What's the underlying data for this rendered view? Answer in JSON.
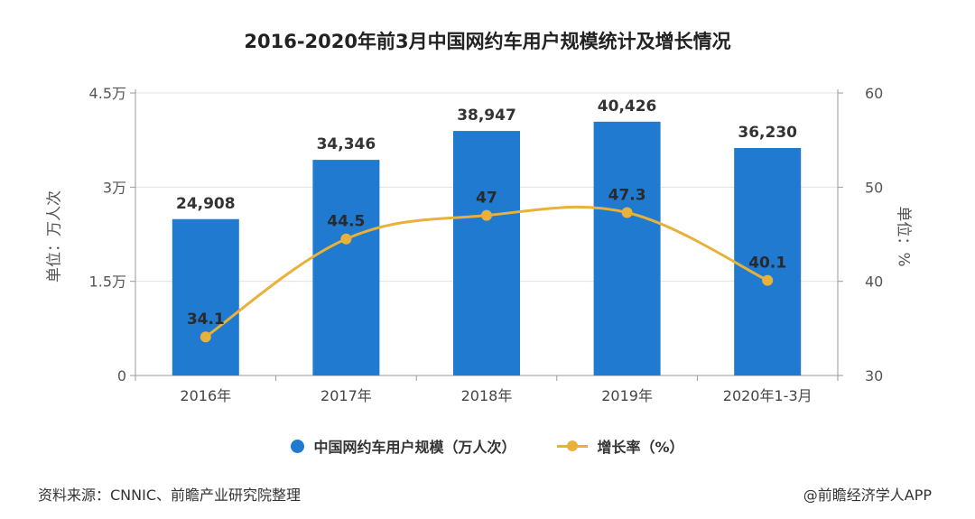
{
  "chart_data": {
    "type": "bar",
    "title": "2016-2020年前3月中国网约车用户规模统计及增长情况",
    "categories": [
      "2016年",
      "2017年",
      "2018年",
      "2019年",
      "2020年1-3月"
    ],
    "series": [
      {
        "name": "中国网约车用户规模（万人次）",
        "type": "bar",
        "axis": "left",
        "values": [
          24908,
          34346,
          38947,
          40426,
          36230
        ],
        "labels": [
          "24,908",
          "34,346",
          "38,947",
          "40,426",
          "36,230"
        ]
      },
      {
        "name": "增长率（%）",
        "type": "line",
        "axis": "right",
        "values": [
          34.1,
          44.5,
          47,
          47.3,
          40.1
        ],
        "labels": [
          "34.1",
          "44.5",
          "47",
          "47.3",
          "40.1"
        ]
      }
    ],
    "yleft": {
      "label": "单位：万人次",
      "min": 0,
      "max": 45000,
      "ticks": [
        0,
        15000,
        30000,
        45000
      ],
      "tick_labels": [
        "0",
        "1.5万",
        "3万",
        "4.5万"
      ]
    },
    "yright": {
      "label": "单位：%",
      "min": 30,
      "max": 60,
      "ticks": [
        30,
        40,
        50,
        60
      ],
      "tick_labels": [
        "30",
        "40",
        "50",
        "60"
      ]
    },
    "legend_position": "bottom",
    "grid": true,
    "colors": {
      "bar": "#1f7ad0",
      "line": "#e8b13a"
    }
  },
  "footer": {
    "source": "资料来源：CNNIC、前瞻产业研究院整理",
    "brand": "@前瞻经济学人APP"
  }
}
